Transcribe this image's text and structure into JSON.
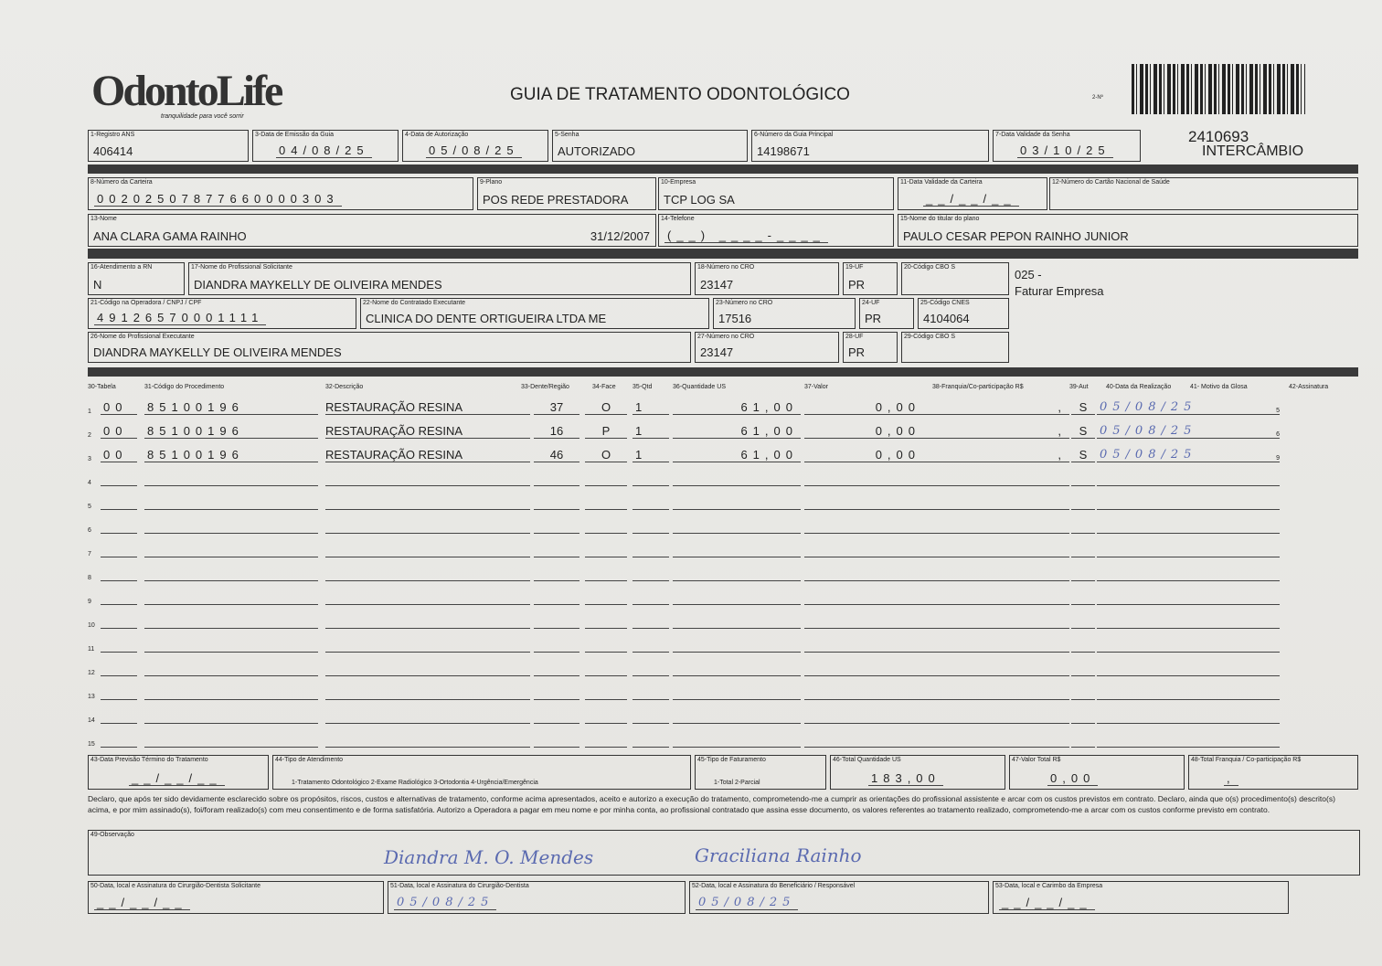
{
  "header": {
    "logo": "OdontoLife",
    "tagline": "tranquilidade para você sorrir",
    "title": "GUIA DE TRATAMENTO ODONTOLÓGICO",
    "guia_no_label": "2-Nº",
    "guia_no": "2410693",
    "tipo": "INTERCÂMBIO"
  },
  "fields": {
    "f1": {
      "label": "1-Registro ANS",
      "value": "406414"
    },
    "f3": {
      "label": "3-Data de Emissão da Guia",
      "value": "04/08/25"
    },
    "f4": {
      "label": "4-Data de Autorização",
      "value": "05/08/25"
    },
    "f5": {
      "label": "5-Senha",
      "value": "AUTORIZADO"
    },
    "f6": {
      "label": "6-Número da Guia Principal",
      "value": "14198671"
    },
    "f7": {
      "label": "7-Data Validade da Senha",
      "value": "03/10/25"
    },
    "f8": {
      "label": "8-Número da Carteira",
      "value": "00202507877660000303"
    },
    "f9": {
      "label": "9-Plano",
      "value": "POS REDE PRESTADORA"
    },
    "f10": {
      "label": "10-Empresa",
      "value": "TCP LOG SA"
    },
    "f11": {
      "label": "11-Data Validade da Carteira",
      "value": "__/__/__"
    },
    "f12": {
      "label": "12-Número do Cartão Nacional de Saúde",
      "value": ""
    },
    "f13": {
      "label": "13-Nome",
      "value": "ANA CLARA GAMA RAINHO",
      "birth": "31/12/2007"
    },
    "f14": {
      "label": "14-Telefone",
      "value": "(__) ____-____"
    },
    "f15": {
      "label": "15-Nome do titular do plano",
      "value": "PAULO CESAR PEPON RAINHO JUNIOR"
    },
    "f16": {
      "label": "16-Atendimento a RN",
      "value": "N"
    },
    "f17": {
      "label": "17-Nome do Profissional Solicitante",
      "value": "DIANDRA MAYKELLY DE OLIVEIRA MENDES"
    },
    "f18": {
      "label": "18-Número no CRO",
      "value": "23147"
    },
    "f19": {
      "label": "19-UF",
      "value": "PR"
    },
    "f20": {
      "label": "20-Código CBO S",
      "value": ""
    },
    "f21": {
      "label": "21-Código na Operadora / CNPJ / CPF",
      "value": "49126570001111"
    },
    "f22": {
      "label": "22-Nome do Contratado Executante",
      "value": "CLINICA DO DENTE ORTIGUEIRA LTDA ME"
    },
    "f23": {
      "label": "23-Número no CRO",
      "value": "17516"
    },
    "f24": {
      "label": "24-UF",
      "value": "PR"
    },
    "f25": {
      "label": "25-Código CNES",
      "value": "4104064"
    },
    "f26": {
      "label": "26-Nome do Profissional Executante",
      "value": "DIANDRA MAYKELLY DE OLIVEIRA MENDES"
    },
    "f27": {
      "label": "27-Número no CRO",
      "value": "23147"
    },
    "f28": {
      "label": "28-UF",
      "value": "PR"
    },
    "f29": {
      "label": "29-Código CBO S",
      "value": ""
    },
    "faturamento": {
      "code": "025 -",
      "text": "Faturar Empresa"
    }
  },
  "table": {
    "headers": [
      "30-Tabela",
      "31-Código do Procedimento",
      "32-Descrição",
      "33-Dente/Região",
      "34-Face",
      "35-Qtd",
      "36-Quantidade US",
      "37-Valor",
      "38-Franquia/Co-participação R$",
      "39-Aut",
      "40-Data da Realização",
      "41- Motivo da Glosa",
      "42-Assinatura"
    ],
    "rows": [
      {
        "n": "1",
        "tabela": "00",
        "codigo": "85100196",
        "descricao": "RESTAURAÇÃO RESINA",
        "dente": "37",
        "face": "O",
        "qtd": "1",
        "us": "61,00",
        "valor": "0,00",
        "franquia": ",",
        "aut": "S",
        "data": "05/08/25",
        "sig_no": "5"
      },
      {
        "n": "2",
        "tabela": "00",
        "codigo": "85100196",
        "descricao": "RESTAURAÇÃO RESINA",
        "dente": "16",
        "face": "P",
        "qtd": "1",
        "us": "61,00",
        "valor": "0,00",
        "franquia": ",",
        "aut": "S",
        "data": "05/08/25",
        "sig_no": "6"
      },
      {
        "n": "3",
        "tabela": "00",
        "codigo": "85100196",
        "descricao": "RESTAURAÇÃO RESINA",
        "dente": "46",
        "face": "O",
        "qtd": "1",
        "us": "61,00",
        "valor": "0,00",
        "franquia": ",",
        "aut": "S",
        "data": "05/08/25",
        "sig_no": "9"
      },
      {
        "n": "4"
      },
      {
        "n": "5"
      },
      {
        "n": "6"
      },
      {
        "n": "7"
      },
      {
        "n": "8"
      },
      {
        "n": "9"
      },
      {
        "n": "10"
      },
      {
        "n": "11"
      },
      {
        "n": "12"
      },
      {
        "n": "13"
      },
      {
        "n": "14"
      },
      {
        "n": "15"
      }
    ]
  },
  "footer": {
    "f43": {
      "label": "43-Data Previsão Término do Tratamento",
      "value": "__/__/__"
    },
    "f44": {
      "label": "44-Tipo de Atendimento",
      "value": "1-Tratamento Odontológico  2-Exame Radiológico  3-Ortodontia  4-Urgência/Emergência"
    },
    "f45": {
      "label": "45-Tipo de Faturamento",
      "value": "1-Total  2-Parcial"
    },
    "f46": {
      "label": "46-Total Quantidade US",
      "value": "183,00"
    },
    "f47": {
      "label": "47-Valor Total R$",
      "value": "0,00"
    },
    "f48": {
      "label": "48-Total Franquia / Co-participação R$",
      "value": ","
    },
    "declaration": "Declaro, que após ter sido devidamente esclarecido sobre os propósitos, riscos, custos e alternativas de tratamento, conforme acima apresentados, aceito e autorizo a execução do tratamento, comprometendo-me a cumprir as orientações do profissional assistente e arcar com os custos previstos em contrato. Declaro, ainda que o(s) procedimento(s) descrito(s) acima, e por mim assinado(s), foi/foram realizado(s) com meu consentimento e de forma satisfatória. Autorizo a Operadora a pagar em meu nome e por minha conta, ao profissional contratado que assina esse documento, os valores referentes ao tratamento realizado, comprometendo-me a arcar com os custos conforme previsto em contrato.",
    "f49": {
      "label": "49-Observação"
    },
    "f50": {
      "label": "50-Data, local e Assinatura do Cirurgião-Dentista Solicitante",
      "value": "__/__/__"
    },
    "f51": {
      "label": "51-Data, local e Assinatura do Cirurgião-Dentista",
      "value": "05/08/25"
    },
    "f52": {
      "label": "52-Data, local e Assinatura do Beneficiário / Responsável",
      "value": "05/08/25"
    },
    "f53": {
      "label": "53-Data, local e Carimbo da Empresa",
      "value": "__/__/__"
    },
    "sig1": "Diandra M. O. Mendes",
    "sig2": "Graciliana Rainho"
  }
}
